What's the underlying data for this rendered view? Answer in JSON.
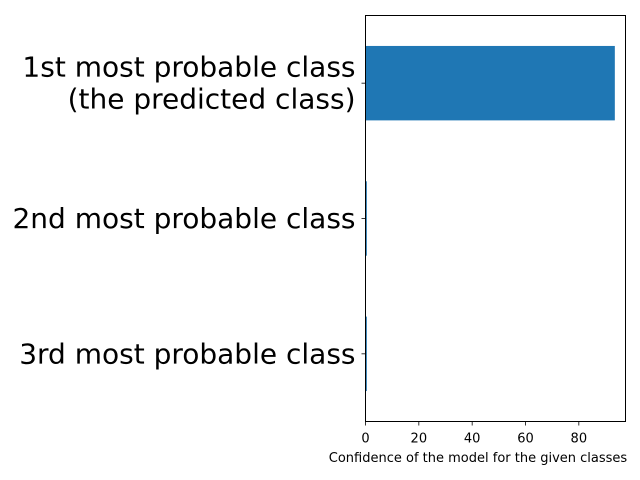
{
  "chart_data": {
    "type": "bar",
    "orientation": "horizontal",
    "title": "",
    "xlabel": "Confidence of the model for the given classes",
    "ylabel": "",
    "categories": [
      [
        "1st most probable class",
        "(the predicted class)"
      ],
      [
        "2nd most probable class"
      ],
      [
        "3rd most probable class"
      ]
    ],
    "values": [
      93.5,
      0.5,
      0.5
    ],
    "xlim": [
      0,
      97.5
    ],
    "xticks": [
      0,
      20,
      40,
      60,
      80
    ],
    "grid": false,
    "legend": "none",
    "bar_color": "#1f77b4"
  }
}
